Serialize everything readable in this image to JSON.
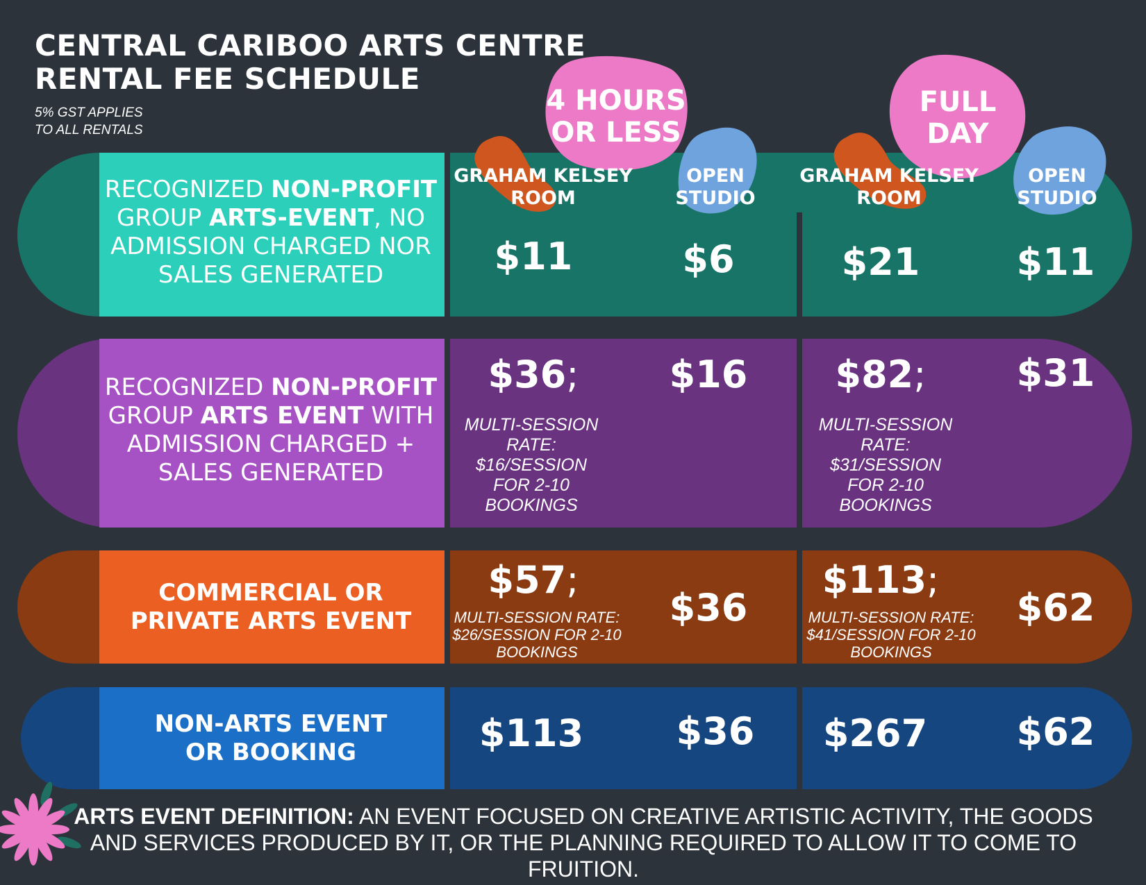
{
  "header": {
    "title_line1": "CENTRAL CARIBOO ARTS CENTRE",
    "title_line2": "RENTAL FEE SCHEDULE",
    "note_line1": "5% GST APPLIES",
    "note_line2": "TO ALL RENTALS"
  },
  "periods": {
    "short_line1": "4 HOURS",
    "short_line2": "OR LESS",
    "full_line1": "FULL",
    "full_line2": "DAY"
  },
  "columns": {
    "gk_line1": "GRAHAM KELSEY",
    "gk_line2": "ROOM",
    "os_line1": "OPEN",
    "os_line2": "STUDIO"
  },
  "rows": [
    {
      "label_parts": [
        {
          "t": "RECOGNIZED ",
          "b": false
        },
        {
          "t": "NON-PROFIT",
          "b": true
        },
        {
          "t": " GROUP ",
          "b": false
        },
        {
          "t": "ARTS-EVENT",
          "b": true
        },
        {
          "t": ", NO ADMISSION CHARGED NOR SALES GENERATED",
          "b": false
        }
      ],
      "gk_short": "$11",
      "os_short": "$6",
      "gk_full": "$21",
      "os_full": "$11"
    },
    {
      "label_parts": [
        {
          "t": "RECOGNIZED ",
          "b": false
        },
        {
          "t": "NON-PROFIT",
          "b": true
        },
        {
          "t": " GROUP ",
          "b": false
        },
        {
          "t": "ARTS EVENT",
          "b": true
        },
        {
          "t": " WITH ADMISSION CHARGED + SALES GENERATED",
          "b": false
        }
      ],
      "gk_short": "$36",
      "gk_short_sep": ";",
      "gk_short_note": [
        "MULTI-SESSION",
        "RATE:",
        "$16/SESSION",
        "FOR 2-10",
        "BOOKINGS"
      ],
      "os_short": "$16",
      "gk_full": "$82",
      "gk_full_sep": ";",
      "gk_full_note": [
        "MULTI-SESSION",
        "RATE:",
        "$31/SESSION",
        "FOR 2-10",
        "BOOKINGS"
      ],
      "os_full": "$31"
    },
    {
      "label_line1": "COMMERCIAL OR",
      "label_line2": "PRIVATE ARTS EVENT",
      "gk_short": "$57",
      "gk_short_sep": ";",
      "gk_short_note": [
        "MULTI-SESSION RATE:",
        "$26/SESSION FOR 2-10",
        "BOOKINGS"
      ],
      "os_short": "$36",
      "gk_full": "$113",
      "gk_full_sep": ";",
      "gk_full_note": [
        "MULTI-SESSION RATE:",
        "$41/SESSION FOR 2-10",
        "BOOKINGS"
      ],
      "os_full": "$62"
    },
    {
      "label_line1": "NON-ARTS EVENT",
      "label_line2": "OR BOOKING",
      "gk_short": "$113",
      "os_short": "$36",
      "gk_full": "$267",
      "os_full": "$62"
    }
  ],
  "footer": {
    "term": "ARTS EVENT DEFINITION:",
    "definition": " AN EVENT FOCUSED ON CREATIVE ARTISTIC ACTIVITY, THE GOODS AND SERVICES PRODUCED BY IT, OR THE PLANNING REQUIRED TO ALLOW IT TO COME TO FRUITION."
  },
  "colors": {
    "background": "#2d333a",
    "teal_label": "#2ccfb9",
    "teal_dark": "#187466",
    "purple_label": "#a752c4",
    "purple_dark": "#6a3380",
    "orange_label": "#ec5f22",
    "orange_dark": "#8a3b12",
    "blue_label": "#1c6fc6",
    "blue_dark": "#15467f",
    "pink_blob": "#ec7ac6",
    "blue_blob": "#6fa3de",
    "orange_blob": "#d0561f"
  }
}
